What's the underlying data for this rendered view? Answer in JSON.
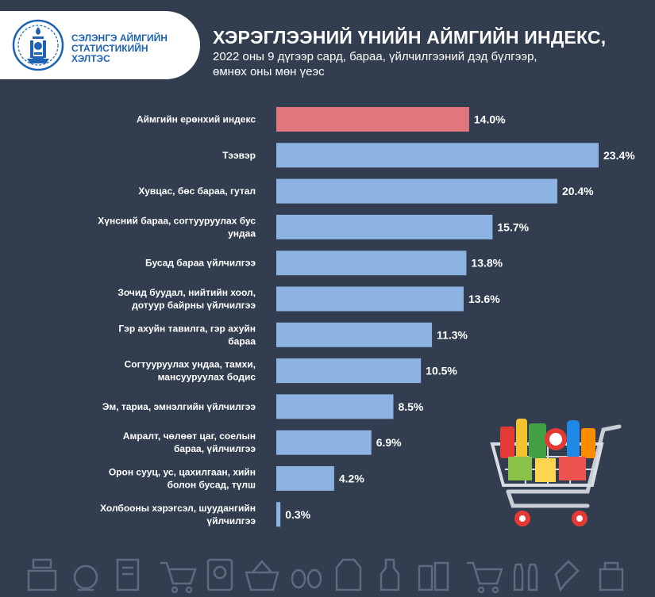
{
  "header": {
    "logo_lines": [
      "СЭЛЭНГЭ АЙМГИЙН",
      "СТАТИСТИКИЙН",
      "ХЭЛТЭС"
    ],
    "title": "ХЭРЭГЛЭЭНИЙ ҮНИЙН АЙМГИЙН ИНДЕКС,",
    "subtitle_lines": [
      "2022 оны 9 дүгээр сард, бараа, үйлчилгээний дэд бүлгээр,",
      "өмнөх оны мөн үеэс"
    ]
  },
  "colors": {
    "background": "#323e4f",
    "bar": "#8db3e2",
    "highlight_bar": "#e0777d",
    "logo_blue": "#1e63b3"
  },
  "chart_data": {
    "type": "bar",
    "orientation": "horizontal",
    "categories": [
      [
        "Аймгийн ерөнхий индекс"
      ],
      [
        "Тээвэр"
      ],
      [
        "Хувцас, бөс бараа, гутал"
      ],
      [
        "Хүнсний бараа, согтууруулах бус",
        "ундаа"
      ],
      [
        "Бусад бараа үйлчилгээ"
      ],
      [
        "Зочид буудал, нийтийн хоол,",
        "дотуур байрны үйлчилгээ"
      ],
      [
        "Гэр ахуйн тавилга, гэр ахуйн",
        "бараа"
      ],
      [
        "Согтууруулах ундаа, тамхи,",
        "мансууруулах бодис"
      ],
      [
        "Эм, тариа, эмнэлгийн үйлчилгээ"
      ],
      [
        "Амралт, чөлөөт цаг, соелын",
        "бараа, үйлчилгээ"
      ],
      [
        "Орон сууц, ус, цахилгаан, хийн",
        "болон бусад, түлш"
      ],
      [
        "Холбооны хэрэгсэл, шуудангийн",
        "үйлчилгээ"
      ]
    ],
    "values": [
      14.0,
      23.4,
      20.4,
      15.7,
      13.8,
      13.6,
      11.3,
      10.5,
      8.5,
      6.9,
      4.2,
      0.3
    ],
    "value_labels": [
      "14.0%",
      "23.4%",
      "20.4%",
      "15.7%",
      "13.8%",
      "13.6%",
      "11.3%",
      "10.5%",
      "8.5%",
      "6.9%",
      "4.2%",
      "0.3%"
    ],
    "highlight_index": 0,
    "xlim": [
      0,
      23.4
    ]
  },
  "decor": {
    "cart_icon": "shopping-cart-with-groceries",
    "bottom_icons": [
      "cash-register-icon",
      "scale-icon",
      "receipt-icon",
      "cart-icon",
      "price-tag-icon",
      "basket-icon",
      "eggs-icon",
      "milk-carton-icon",
      "bottle-icon",
      "jars-icon",
      "cart-icon",
      "bottles-icon",
      "spray-icon",
      "bag-icon"
    ]
  }
}
